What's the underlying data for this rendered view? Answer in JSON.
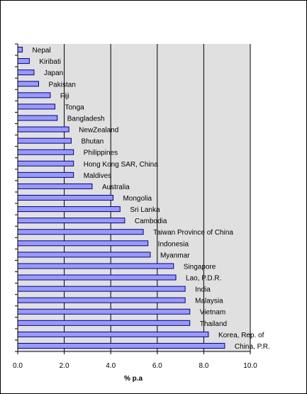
{
  "chart_data": {
    "type": "bar",
    "orientation": "horizontal",
    "categories": [
      "Nepal",
      "Kiribati",
      "Japan",
      "Pakistan",
      "Fiji",
      "Tonga",
      "Bangladesh",
      "NewZealand",
      "Bhutan",
      "Philippines",
      "Hong Kong SAR, China",
      "Maldives",
      "Australia",
      "Mongolia",
      "Sri Lanka",
      "Cambodia",
      "Taiwan Province of China",
      "Indonesia",
      "Myanmar",
      "Singapore",
      "Lao, P.D.R.",
      "India",
      "Malaysia",
      "Vietnam",
      "Thailand",
      "Korea, Rep. of",
      "China, P.R."
    ],
    "values": [
      0.2,
      0.5,
      0.7,
      0.9,
      1.4,
      1.6,
      1.7,
      2.2,
      2.3,
      2.4,
      2.4,
      2.4,
      3.2,
      4.1,
      4.4,
      4.6,
      5.4,
      5.6,
      5.7,
      6.7,
      6.8,
      7.2,
      7.2,
      7.4,
      7.4,
      8.2,
      8.9
    ],
    "xlabel": "% p.a",
    "ylabel": "",
    "title": "",
    "xlim": [
      0,
      10
    ],
    "x_ticks": [
      "0.0",
      "2.0",
      "4.0",
      "6.0",
      "8.0",
      "10.0"
    ],
    "grid": "vertical",
    "legend": "none",
    "colors": {
      "bar_fill": "#9999ff",
      "bar_stroke": "#000080",
      "plot_background": "#e0e0e0",
      "gridline": "#000000"
    }
  }
}
